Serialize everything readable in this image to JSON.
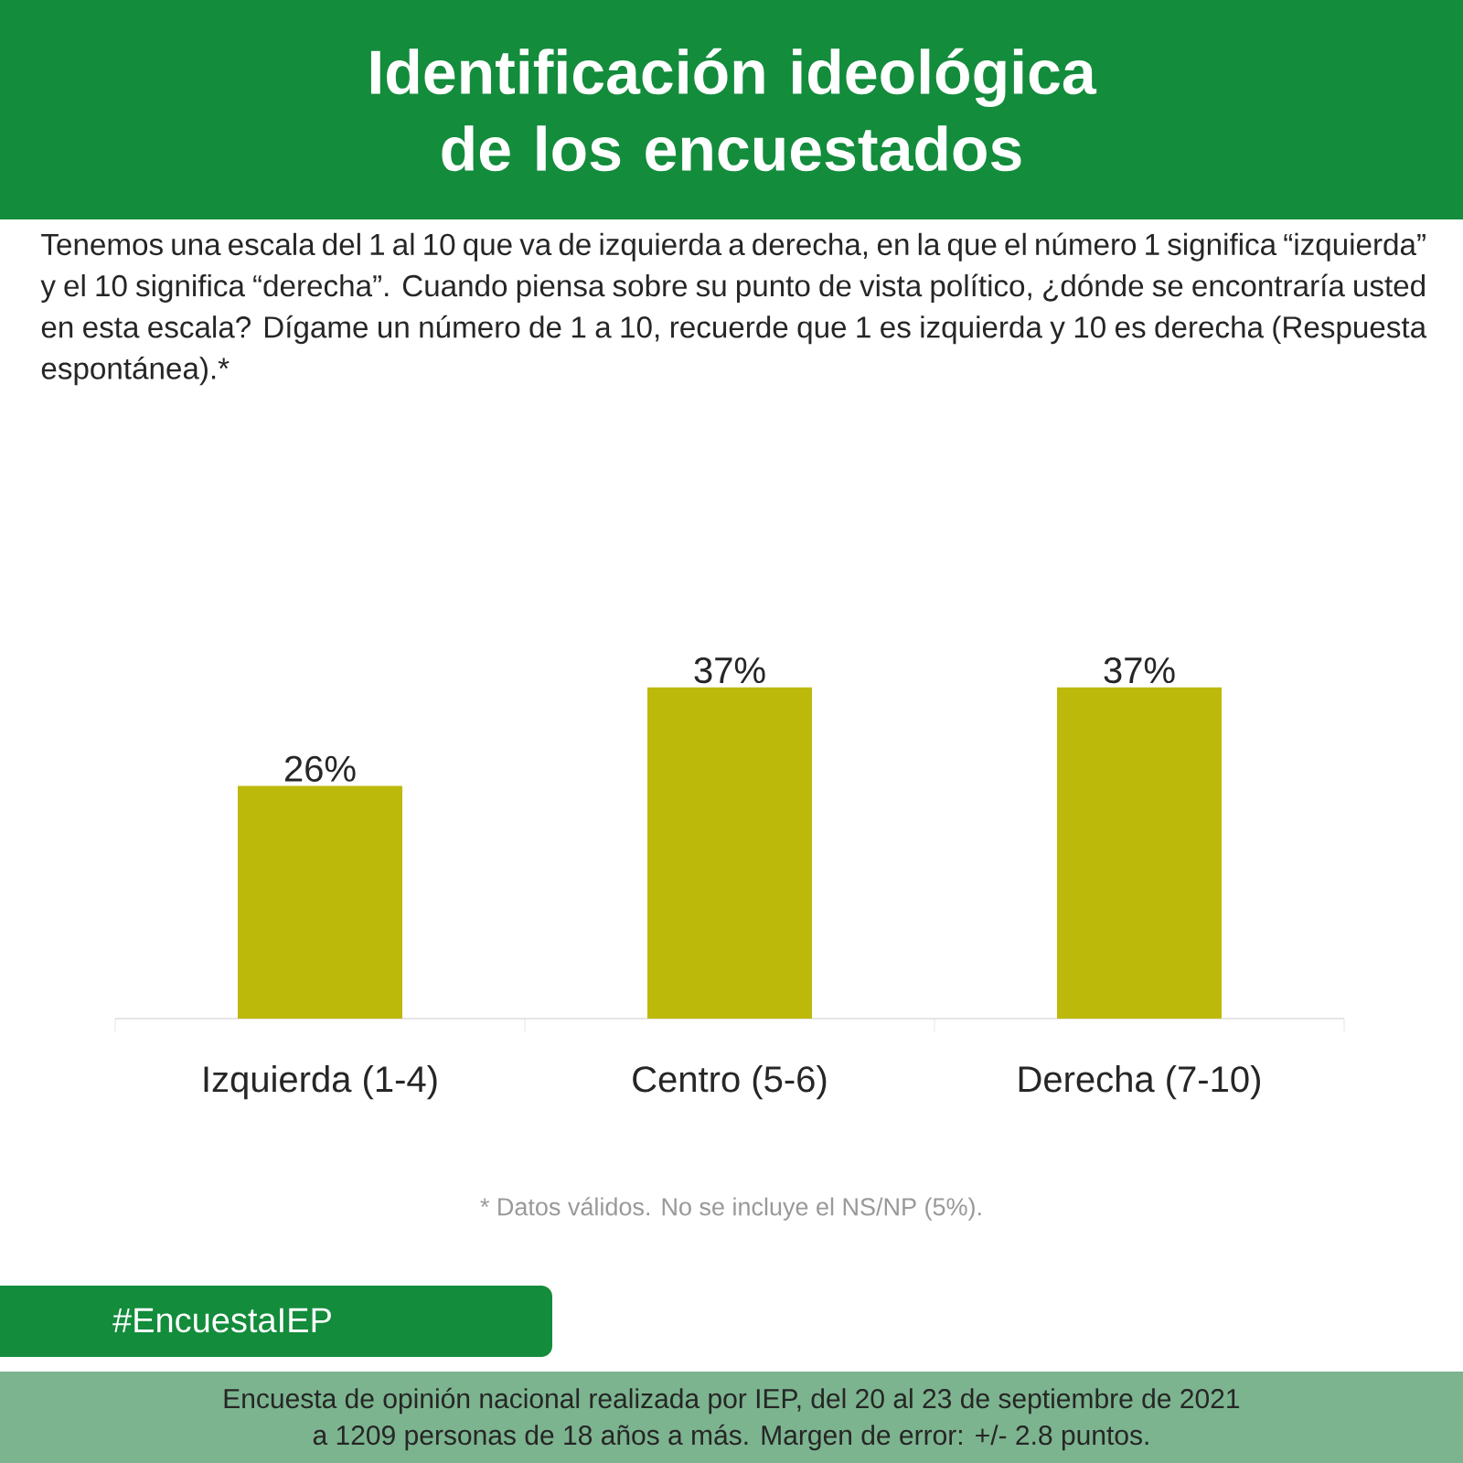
{
  "chart_data": {
    "type": "bar",
    "title": "Identificación ideológica de los encuestados",
    "subtitle": "Tenemos una escala del 1 al 10 que va de izquierda a derecha, en la que el número 1 significa “izquierda” y el 10 significa “derecha”. Cuando piensa sobre su punto de vista político, ¿dónde se encontraría usted en esta escala? Dígame un número de 1 a 10, recuerde que 1 es izquierda y 10 es derecha (Respuesta espontánea).*",
    "categories": [
      "Izquierda (1-4)",
      "Centro (5-6)",
      "Derecha (7-10)"
    ],
    "values": [
      26,
      37,
      37
    ],
    "value_labels": [
      "26%",
      "37%",
      "37%"
    ],
    "color": "#bdb90b",
    "tick_labels": "x",
    "annotations": [
      "* Datos válidos. No se incluye el NS/NP (5%).",
      "#EncuestaIEP",
      "Encuesta de opinión nacional realizada por IEP, del 20 al 23 de septiembre de 2021",
      "a 1209 personas de 18 años a más. Margen de error: +/- 2.8 puntos."
    ]
  }
}
